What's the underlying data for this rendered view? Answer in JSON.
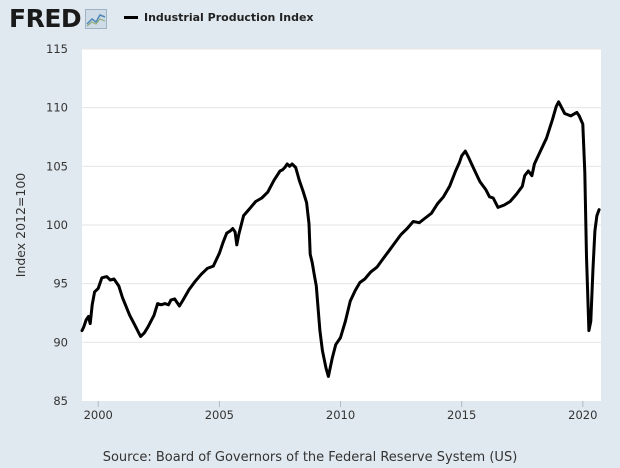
{
  "header": {
    "logo_text": "FRED",
    "logo_icon": "chart-graph-icon",
    "legend_label": "Industrial Production Index"
  },
  "footer": {
    "source": "Source: Board of Governors of the Federal Reserve System (US)"
  },
  "chart_data": {
    "type": "line",
    "title": "",
    "xlabel": "",
    "ylabel": "Index 2012=100",
    "xlim": [
      1999.33,
      2020.75
    ],
    "ylim": [
      85,
      115
    ],
    "yticks": [
      85,
      90,
      95,
      100,
      105,
      110,
      115
    ],
    "xticks": [
      2000,
      2005,
      2010,
      2015,
      2020
    ],
    "xtick_labels": [
      "2000",
      "2005",
      "2010",
      "2015",
      "2020"
    ],
    "grid": "horizontal",
    "colors": {
      "line": "#000000",
      "plot_bg": "#ffffff",
      "page_bg": "#e1e9f0",
      "grid": "#e6e6e6"
    },
    "series": [
      {
        "name": "Industrial Production Index",
        "x": [
          1999.33,
          1999.4,
          1999.5,
          1999.6,
          1999.67,
          1999.75,
          1999.85,
          2000.0,
          2000.15,
          2000.35,
          2000.5,
          2000.65,
          2000.85,
          2001.0,
          2001.3,
          2001.5,
          2001.75,
          2001.9,
          2002.05,
          2002.3,
          2002.45,
          2002.6,
          2002.75,
          2002.9,
          2003.0,
          2003.15,
          2003.35,
          2003.5,
          2003.75,
          2004.0,
          2004.25,
          2004.5,
          2004.75,
          2005.0,
          2005.15,
          2005.3,
          2005.45,
          2005.55,
          2005.65,
          2005.72,
          2005.8,
          2006.0,
          2006.25,
          2006.5,
          2006.75,
          2007.0,
          2007.25,
          2007.5,
          2007.6,
          2007.7,
          2007.8,
          2007.9,
          2008.0,
          2008.15,
          2008.3,
          2008.45,
          2008.6,
          2008.7,
          2008.75,
          2008.83,
          2008.92,
          2009.0,
          2009.15,
          2009.25,
          2009.4,
          2009.5,
          2009.65,
          2009.8,
          2010.0,
          2010.2,
          2010.4,
          2010.6,
          2010.8,
          2011.0,
          2011.25,
          2011.5,
          2011.75,
          2012.0,
          2012.25,
          2012.5,
          2012.75,
          2013.0,
          2013.25,
          2013.5,
          2013.75,
          2014.0,
          2014.25,
          2014.5,
          2014.75,
          2014.9,
          2015.0,
          2015.15,
          2015.3,
          2015.5,
          2015.75,
          2016.0,
          2016.15,
          2016.3,
          2016.5,
          2016.75,
          2017.0,
          2017.25,
          2017.5,
          2017.6,
          2017.75,
          2017.9,
          2018.0,
          2018.25,
          2018.5,
          2018.75,
          2018.9,
          2019.0,
          2019.25,
          2019.5,
          2019.75,
          2019.85,
          2020.0,
          2020.08,
          2020.15,
          2020.25,
          2020.33,
          2020.42,
          2020.5,
          2020.58,
          2020.67
        ],
        "values": [
          91.0,
          91.3,
          91.9,
          92.2,
          91.6,
          93.2,
          94.3,
          94.6,
          95.5,
          95.6,
          95.3,
          95.4,
          94.8,
          93.8,
          92.3,
          91.5,
          90.5,
          90.8,
          91.3,
          92.3,
          93.3,
          93.2,
          93.3,
          93.2,
          93.6,
          93.7,
          93.1,
          93.6,
          94.5,
          95.2,
          95.8,
          96.3,
          96.5,
          97.6,
          98.5,
          99.3,
          99.5,
          99.7,
          99.4,
          98.3,
          99.2,
          100.8,
          101.4,
          102.0,
          102.3,
          102.8,
          103.8,
          104.6,
          104.7,
          104.9,
          105.2,
          105.0,
          105.2,
          104.9,
          103.8,
          102.9,
          101.9,
          100.1,
          97.5,
          96.8,
          95.7,
          94.8,
          91.0,
          89.3,
          87.8,
          87.1,
          88.6,
          89.8,
          90.4,
          91.8,
          93.5,
          94.4,
          95.1,
          95.4,
          96.0,
          96.4,
          97.1,
          97.8,
          98.5,
          99.2,
          99.7,
          100.3,
          100.2,
          100.6,
          101.0,
          101.8,
          102.4,
          103.3,
          104.6,
          105.3,
          105.9,
          106.3,
          105.7,
          104.8,
          103.7,
          103.0,
          102.4,
          102.3,
          101.5,
          101.7,
          102.0,
          102.6,
          103.3,
          104.2,
          104.6,
          104.2,
          105.2,
          106.3,
          107.4,
          109.0,
          110.1,
          110.5,
          109.5,
          109.3,
          109.6,
          109.3,
          108.6,
          104.5,
          97.3,
          91.0,
          91.8,
          96.3,
          99.5,
          100.8,
          101.3
        ]
      }
    ]
  }
}
